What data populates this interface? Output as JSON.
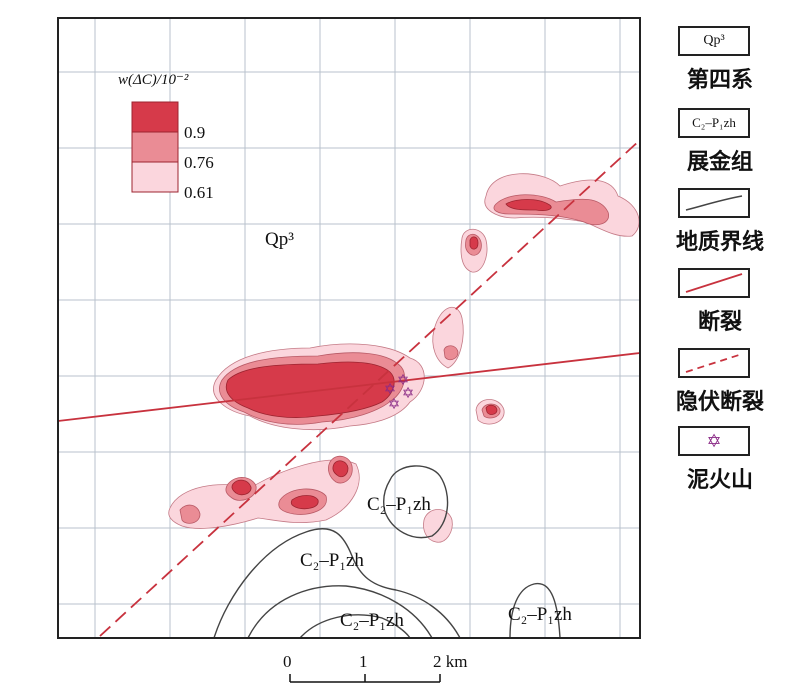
{
  "map": {
    "label_qp3": "Qp³",
    "label_c2p1zh_1": "C₂–P₁zh",
    "label_c2p1zh_2": "C₂–P₁zh",
    "label_c2p1zh_3": "C₂–P₁zh",
    "label_c2p1zh_4": "C₂–P₁zh",
    "colors": {
      "frame": "#222222",
      "grid": "#b9c2cc",
      "level_high": "#d63a4a",
      "level_mid": "#ea8c95",
      "level_low": "#fbd6dd",
      "fault": "#c8323e",
      "geo_boundary": "#444444",
      "mud_volcano": "#8a2a86"
    }
  },
  "anomaly_legend": {
    "title": "w(ΔC)/10⁻²",
    "levels": [
      "0.9",
      "0.76",
      "0.61"
    ]
  },
  "scale_bar": {
    "ticks": [
      "0",
      "1",
      "2 km"
    ]
  },
  "legend": {
    "quaternary_symbol": "Qp³",
    "quaternary_label": "第四系",
    "zhanjin_symbol": "C₂–P₁zh",
    "zhanjin_label": "展金组",
    "boundary_label": "地质界线",
    "fault_label": "断裂",
    "hidden_fault_label": "隐伏断裂",
    "mud_volcano_label": "泥火山"
  }
}
